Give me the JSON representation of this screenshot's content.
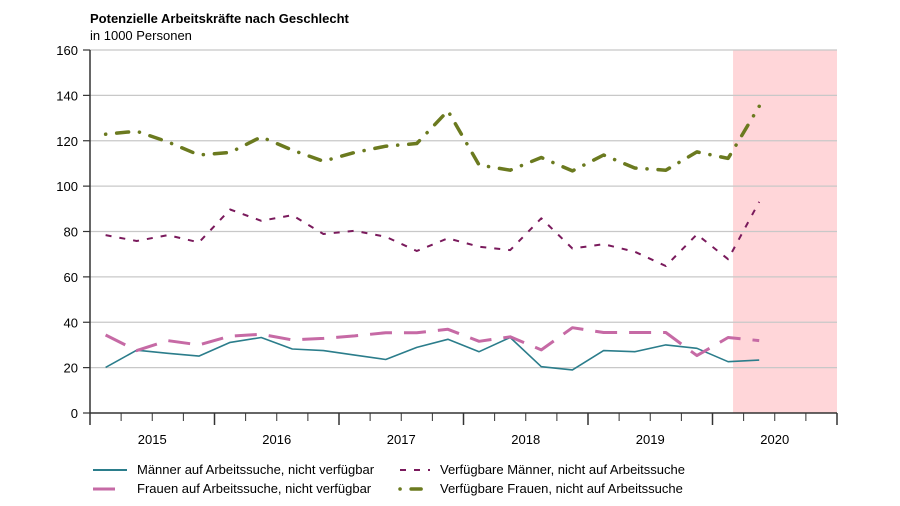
{
  "chart_data": {
    "type": "line",
    "title": "Potenzielle Arbeitskräfte nach Geschlecht",
    "subtitle": "in 1000 Personen",
    "xlabel": "",
    "ylabel": "",
    "ylim": [
      0,
      160
    ],
    "yticks": [
      "0",
      "20",
      "40",
      "60",
      "80",
      "100",
      "120",
      "140",
      "160"
    ],
    "xlim": [
      "2015 Q1",
      "2020 Q4"
    ],
    "categories_years": [
      "2015",
      "2016",
      "2017",
      "2018",
      "2019",
      "2020"
    ],
    "grid": "horizontal",
    "legend_placement": "bottom",
    "highlight_period": {
      "from": "2020",
      "to": "2020 Q4",
      "color": "#ffd6d9"
    },
    "x": [
      "2015 Q1",
      "2015 Q2",
      "2015 Q3",
      "2015 Q4",
      "2016 Q1",
      "2016 Q2",
      "2016 Q3",
      "2016 Q4",
      "2017 Q1",
      "2017 Q2",
      "2017 Q3",
      "2017 Q4",
      "2018 Q1",
      "2018 Q2",
      "2018 Q3",
      "2018 Q4",
      "2019 Q1",
      "2019 Q2",
      "2019 Q3",
      "2019 Q4",
      "2020 Q1",
      "2020 Q2"
    ],
    "series": [
      {
        "name": "Männer auf Arbeitssuche, nicht verfügbar",
        "color": "#2b7d8b",
        "style": "solid",
        "values": [
          20.1,
          27.7,
          26.3,
          25.1,
          31.1,
          33.3,
          28.2,
          27.5,
          25.5,
          23.6,
          28.9,
          32.5,
          27.0,
          33.3,
          20.4,
          19.0,
          27.5,
          27.0,
          30.0,
          28.5,
          22.6,
          23.3
        ]
      },
      {
        "name": "Frauen auf Arbeitssuche, nicht verfügbar",
        "color": "#c66aa5",
        "style": "long-dash",
        "values": [
          34.4,
          27.5,
          31.9,
          30.0,
          33.9,
          34.7,
          32.2,
          32.9,
          34.0,
          35.4,
          35.4,
          36.9,
          31.6,
          33.6,
          27.8,
          37.6,
          35.5,
          35.5,
          35.5,
          25.3,
          33.3,
          31.9
        ]
      },
      {
        "name": "Verfügbare Männer, nicht auf Arbeitssuche",
        "color": "#7a1a5c",
        "style": "short-dash",
        "values": [
          78.4,
          75.8,
          78.4,
          75.2,
          89.7,
          84.7,
          87.2,
          78.9,
          80.3,
          77.7,
          71.4,
          77.0,
          73.3,
          71.8,
          85.8,
          72.5,
          74.4,
          71.1,
          64.8,
          78.7,
          67.8,
          93.1
        ]
      },
      {
        "name": "Verfügbare Frauen, nicht auf Arbeitssuche",
        "color": "#6b7a1f",
        "style": "dash-dot",
        "values": [
          122.9,
          124.2,
          119.5,
          113.7,
          114.8,
          121.7,
          115.9,
          111.0,
          114.8,
          117.6,
          118.8,
          133.2,
          109.3,
          107.0,
          112.6,
          106.7,
          113.7,
          108.0,
          107.0,
          115.1,
          112.2,
          135.2
        ]
      }
    ]
  }
}
